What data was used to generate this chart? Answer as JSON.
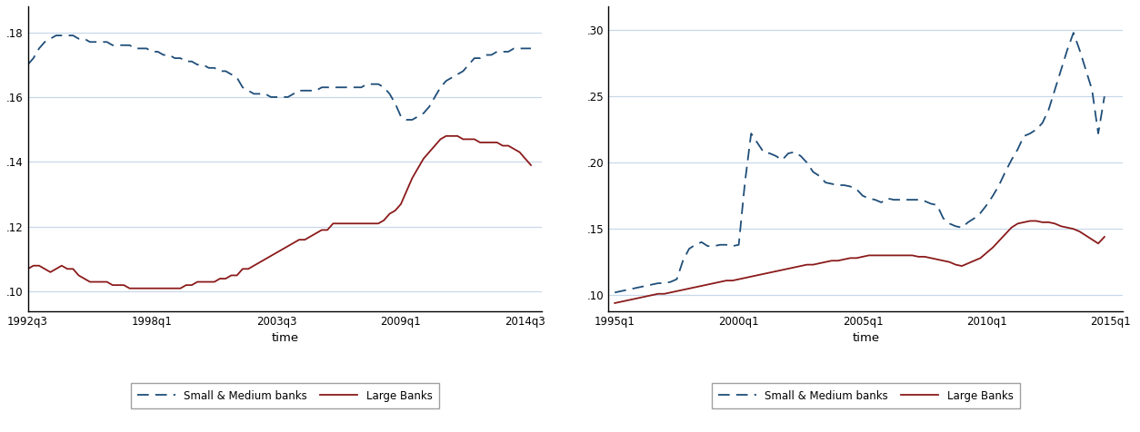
{
  "panel1": {
    "xlabel": "time",
    "xlim_start": 1992.5,
    "xlim_end": 2015.25,
    "ylim": [
      0.094,
      0.188
    ],
    "yticks": [
      0.1,
      0.12,
      0.14,
      0.16,
      0.18
    ],
    "xtick_labels": [
      "1992q3",
      "1998q1",
      "2003q3",
      "2009q1",
      "2014q3"
    ],
    "xtick_pos": [
      1992.5,
      1998.0,
      2003.5,
      2009.0,
      2014.5
    ],
    "sm_color": "#1F4E79",
    "large_color": "#8B1A1A",
    "sm_x": [
      1992.5,
      1992.75,
      1993.0,
      1993.25,
      1993.5,
      1993.75,
      1994.0,
      1994.25,
      1994.5,
      1994.75,
      1995.0,
      1995.25,
      1995.5,
      1995.75,
      1996.0,
      1996.25,
      1996.5,
      1996.75,
      1997.0,
      1997.25,
      1997.5,
      1997.75,
      1998.0,
      1998.25,
      1998.5,
      1998.75,
      1999.0,
      1999.25,
      1999.5,
      1999.75,
      2000.0,
      2000.25,
      2000.5,
      2000.75,
      2001.0,
      2001.25,
      2001.5,
      2001.75,
      2002.0,
      2002.25,
      2002.5,
      2002.75,
      2003.0,
      2003.25,
      2003.5,
      2003.75,
      2004.0,
      2004.25,
      2004.5,
      2004.75,
      2005.0,
      2005.25,
      2005.5,
      2005.75,
      2006.0,
      2006.25,
      2006.5,
      2006.75,
      2007.0,
      2007.25,
      2007.5,
      2007.75,
      2008.0,
      2008.25,
      2008.5,
      2008.75,
      2009.0,
      2009.25,
      2009.5,
      2009.75,
      2010.0,
      2010.25,
      2010.5,
      2010.75,
      2011.0,
      2011.25,
      2011.5,
      2011.75,
      2012.0,
      2012.25,
      2012.5,
      2012.75,
      2013.0,
      2013.25,
      2013.5,
      2013.75,
      2014.0,
      2014.25,
      2014.5,
      2014.75
    ],
    "sm_y": [
      0.17,
      0.172,
      0.175,
      0.177,
      0.178,
      0.179,
      0.179,
      0.179,
      0.179,
      0.178,
      0.178,
      0.177,
      0.177,
      0.177,
      0.177,
      0.176,
      0.176,
      0.176,
      0.176,
      0.175,
      0.175,
      0.175,
      0.174,
      0.174,
      0.173,
      0.173,
      0.172,
      0.172,
      0.171,
      0.171,
      0.17,
      0.17,
      0.169,
      0.169,
      0.168,
      0.168,
      0.167,
      0.166,
      0.163,
      0.162,
      0.161,
      0.161,
      0.161,
      0.16,
      0.16,
      0.16,
      0.16,
      0.161,
      0.162,
      0.162,
      0.162,
      0.162,
      0.163,
      0.163,
      0.163,
      0.163,
      0.163,
      0.163,
      0.163,
      0.163,
      0.164,
      0.164,
      0.164,
      0.163,
      0.161,
      0.158,
      0.154,
      0.153,
      0.153,
      0.154,
      0.155,
      0.157,
      0.16,
      0.163,
      0.165,
      0.166,
      0.167,
      0.168,
      0.17,
      0.172,
      0.172,
      0.173,
      0.173,
      0.174,
      0.174,
      0.174,
      0.175,
      0.175,
      0.175,
      0.175
    ],
    "large_x": [
      1992.5,
      1992.75,
      1993.0,
      1993.25,
      1993.5,
      1993.75,
      1994.0,
      1994.25,
      1994.5,
      1994.75,
      1995.0,
      1995.25,
      1995.5,
      1995.75,
      1996.0,
      1996.25,
      1996.5,
      1996.75,
      1997.0,
      1997.25,
      1997.5,
      1997.75,
      1998.0,
      1998.25,
      1998.5,
      1998.75,
      1999.0,
      1999.25,
      1999.5,
      1999.75,
      2000.0,
      2000.25,
      2000.5,
      2000.75,
      2001.0,
      2001.25,
      2001.5,
      2001.75,
      2002.0,
      2002.25,
      2002.5,
      2002.75,
      2003.0,
      2003.25,
      2003.5,
      2003.75,
      2004.0,
      2004.25,
      2004.5,
      2004.75,
      2005.0,
      2005.25,
      2005.5,
      2005.75,
      2006.0,
      2006.25,
      2006.5,
      2006.75,
      2007.0,
      2007.25,
      2007.5,
      2007.75,
      2008.0,
      2008.25,
      2008.5,
      2008.75,
      2009.0,
      2009.25,
      2009.5,
      2009.75,
      2010.0,
      2010.25,
      2010.5,
      2010.75,
      2011.0,
      2011.25,
      2011.5,
      2011.75,
      2012.0,
      2012.25,
      2012.5,
      2012.75,
      2013.0,
      2013.25,
      2013.5,
      2013.75,
      2014.0,
      2014.25,
      2014.5,
      2014.75
    ],
    "large_y": [
      0.107,
      0.108,
      0.108,
      0.107,
      0.106,
      0.107,
      0.108,
      0.107,
      0.107,
      0.105,
      0.104,
      0.103,
      0.103,
      0.103,
      0.103,
      0.102,
      0.102,
      0.102,
      0.101,
      0.101,
      0.101,
      0.101,
      0.101,
      0.101,
      0.101,
      0.101,
      0.101,
      0.101,
      0.102,
      0.102,
      0.103,
      0.103,
      0.103,
      0.103,
      0.104,
      0.104,
      0.105,
      0.105,
      0.107,
      0.107,
      0.108,
      0.109,
      0.11,
      0.111,
      0.112,
      0.113,
      0.114,
      0.115,
      0.116,
      0.116,
      0.117,
      0.118,
      0.119,
      0.119,
      0.121,
      0.121,
      0.121,
      0.121,
      0.121,
      0.121,
      0.121,
      0.121,
      0.121,
      0.122,
      0.124,
      0.125,
      0.127,
      0.131,
      0.135,
      0.138,
      0.141,
      0.143,
      0.145,
      0.147,
      0.148,
      0.148,
      0.148,
      0.147,
      0.147,
      0.147,
      0.146,
      0.146,
      0.146,
      0.146,
      0.145,
      0.145,
      0.144,
      0.143,
      0.141,
      0.139
    ]
  },
  "panel2": {
    "xlabel": "time",
    "xlim_start": 1994.75,
    "xlim_end": 2015.5,
    "ylim": [
      0.088,
      0.318
    ],
    "yticks": [
      0.1,
      0.15,
      0.2,
      0.25,
      0.3
    ],
    "xtick_labels": [
      "1995q1",
      "2000q1",
      "2005q1",
      "2010q1",
      "2015q1"
    ],
    "xtick_pos": [
      1995.0,
      2000.0,
      2005.0,
      2010.0,
      2015.0
    ],
    "sm_color": "#1F4E79",
    "large_color": "#8B1A1A",
    "sm_x": [
      1995.0,
      1995.25,
      1995.5,
      1995.75,
      1996.0,
      1996.25,
      1996.5,
      1996.75,
      1997.0,
      1997.25,
      1997.5,
      1997.75,
      1998.0,
      1998.25,
      1998.5,
      1998.75,
      1999.0,
      1999.25,
      1999.5,
      1999.75,
      2000.0,
      2000.25,
      2000.5,
      2000.75,
      2001.0,
      2001.25,
      2001.5,
      2001.75,
      2002.0,
      2002.25,
      2002.5,
      2002.75,
      2003.0,
      2003.25,
      2003.5,
      2003.75,
      2004.0,
      2004.25,
      2004.5,
      2004.75,
      2005.0,
      2005.25,
      2005.5,
      2005.75,
      2006.0,
      2006.25,
      2006.5,
      2006.75,
      2007.0,
      2007.25,
      2007.5,
      2007.75,
      2008.0,
      2008.25,
      2008.5,
      2008.75,
      2009.0,
      2009.25,
      2009.5,
      2009.75,
      2010.0,
      2010.25,
      2010.5,
      2010.75,
      2011.0,
      2011.25,
      2011.5,
      2011.75,
      2012.0,
      2012.25,
      2012.5,
      2012.75,
      2013.0,
      2013.25,
      2013.5,
      2013.75,
      2014.0,
      2014.25,
      2014.5,
      2014.75
    ],
    "sm_y": [
      0.102,
      0.103,
      0.104,
      0.105,
      0.106,
      0.107,
      0.108,
      0.109,
      0.109,
      0.11,
      0.112,
      0.126,
      0.135,
      0.138,
      0.14,
      0.137,
      0.137,
      0.138,
      0.138,
      0.137,
      0.138,
      0.185,
      0.222,
      0.215,
      0.208,
      0.207,
      0.205,
      0.202,
      0.207,
      0.208,
      0.205,
      0.2,
      0.193,
      0.19,
      0.185,
      0.184,
      0.183,
      0.183,
      0.182,
      0.18,
      0.175,
      0.173,
      0.172,
      0.17,
      0.173,
      0.172,
      0.172,
      0.172,
      0.172,
      0.172,
      0.171,
      0.169,
      0.168,
      0.158,
      0.154,
      0.152,
      0.151,
      0.155,
      0.158,
      0.162,
      0.168,
      0.175,
      0.183,
      0.193,
      0.202,
      0.21,
      0.22,
      0.222,
      0.225,
      0.23,
      0.24,
      0.255,
      0.27,
      0.285,
      0.298,
      0.285,
      0.27,
      0.255,
      0.222,
      0.25
    ],
    "large_x": [
      1995.0,
      1995.25,
      1995.5,
      1995.75,
      1996.0,
      1996.25,
      1996.5,
      1996.75,
      1997.0,
      1997.25,
      1997.5,
      1997.75,
      1998.0,
      1998.25,
      1998.5,
      1998.75,
      1999.0,
      1999.25,
      1999.5,
      1999.75,
      2000.0,
      2000.25,
      2000.5,
      2000.75,
      2001.0,
      2001.25,
      2001.5,
      2001.75,
      2002.0,
      2002.25,
      2002.5,
      2002.75,
      2003.0,
      2003.25,
      2003.5,
      2003.75,
      2004.0,
      2004.25,
      2004.5,
      2004.75,
      2005.0,
      2005.25,
      2005.5,
      2005.75,
      2006.0,
      2006.25,
      2006.5,
      2006.75,
      2007.0,
      2007.25,
      2007.5,
      2007.75,
      2008.0,
      2008.25,
      2008.5,
      2008.75,
      2009.0,
      2009.25,
      2009.5,
      2009.75,
      2010.0,
      2010.25,
      2010.5,
      2010.75,
      2011.0,
      2011.25,
      2011.5,
      2011.75,
      2012.0,
      2012.25,
      2012.5,
      2012.75,
      2013.0,
      2013.25,
      2013.5,
      2013.75,
      2014.0,
      2014.25,
      2014.5,
      2014.75
    ],
    "large_y": [
      0.094,
      0.095,
      0.096,
      0.097,
      0.098,
      0.099,
      0.1,
      0.101,
      0.101,
      0.102,
      0.103,
      0.104,
      0.105,
      0.106,
      0.107,
      0.108,
      0.109,
      0.11,
      0.111,
      0.111,
      0.112,
      0.113,
      0.114,
      0.115,
      0.116,
      0.117,
      0.118,
      0.119,
      0.12,
      0.121,
      0.122,
      0.123,
      0.123,
      0.124,
      0.125,
      0.126,
      0.126,
      0.127,
      0.128,
      0.128,
      0.129,
      0.13,
      0.13,
      0.13,
      0.13,
      0.13,
      0.13,
      0.13,
      0.13,
      0.129,
      0.129,
      0.128,
      0.127,
      0.126,
      0.125,
      0.123,
      0.122,
      0.124,
      0.126,
      0.128,
      0.132,
      0.136,
      0.141,
      0.146,
      0.151,
      0.154,
      0.155,
      0.156,
      0.156,
      0.155,
      0.155,
      0.154,
      0.152,
      0.151,
      0.15,
      0.148,
      0.145,
      0.142,
      0.139,
      0.144
    ]
  },
  "legend_sm_label": "Small & Medium banks",
  "legend_large_label": "Large Banks",
  "bg_color": "#ffffff",
  "grid_color": "#c8d8e8",
  "axis_color": "#000000"
}
